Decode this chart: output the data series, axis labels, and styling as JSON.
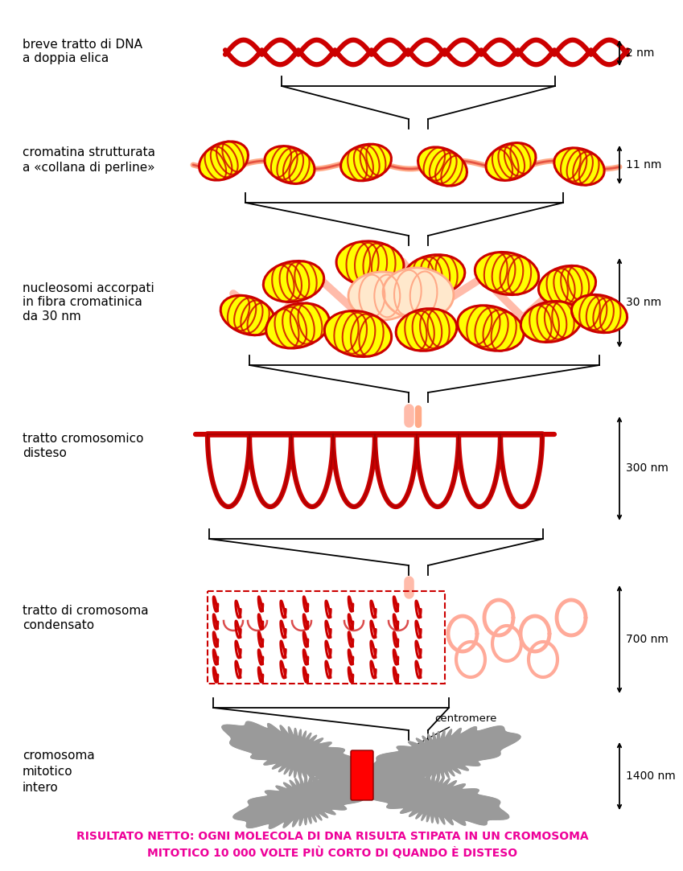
{
  "background_color": "#ffffff",
  "red_color": "#cc0000",
  "red_dark": "#990000",
  "pink_color": "#ffbbaa",
  "pink_light": "#ffccbb",
  "yellow_color": "#ffff00",
  "yellow_dark": "#ffdd00",
  "gray_color": "#9a9a9a",
  "black_color": "#000000",
  "magenta_color": "#ee0099",
  "footer_line1": "RISULTATO NETTO: OGNI MOLECOLA DI DNA RISULTA STIPATA IN UN CROMOSOMA",
  "footer_line2": "MITOTICO 10 000 VOLTE PIÙ CORTO DI QUANDO È DISTESO",
  "labels": [
    "breve tratto di DNA\na doppia elica",
    "cromatina strutturata\na «collana di perline»",
    "nucleosomi accorpati\nin fibra cromatinica\nda 30 nm",
    "tratto cromosomico\ndisteso",
    "tratto di cromosoma\ncondensato",
    "cromosoma\nmitotico\nintero"
  ],
  "sizes": [
    "2 nm",
    "11 nm",
    "30 nm",
    "300 nm",
    "700 nm",
    "1400 nm"
  ]
}
